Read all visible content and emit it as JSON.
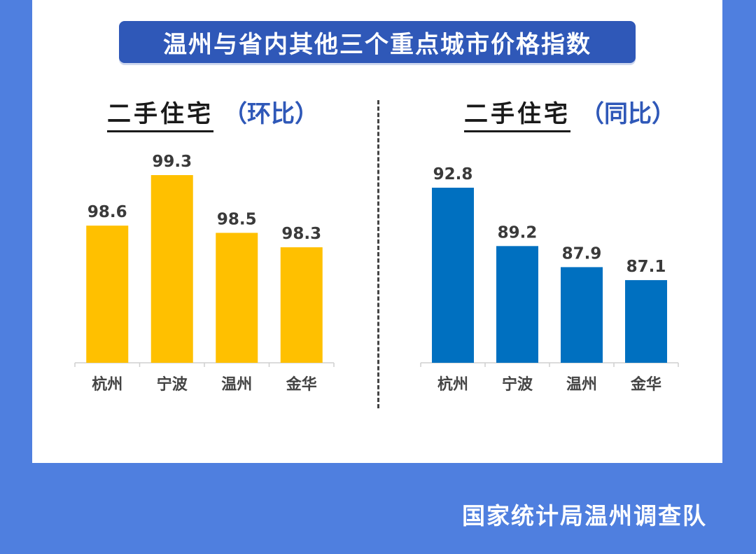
{
  "title": "温州与省内其他三个重点城市价格指数",
  "footer": "国家统计局温州调查队",
  "colors": {
    "background": "#4f7fdf",
    "title_bg": "#2f58b8",
    "bar_left": "#ffc000",
    "bar_right": "#0070c0"
  },
  "chart_data": [
    {
      "type": "bar",
      "title": "二手住宅",
      "subtitle": "（环比）",
      "categories": [
        "杭州",
        "宁波",
        "温州",
        "金华"
      ],
      "values": [
        98.6,
        99.3,
        98.5,
        98.3
      ],
      "data_labels": [
        "98.6",
        "99.3",
        "98.5",
        "98.3"
      ],
      "color": "#ffc000",
      "ylim": [
        96.7,
        99.4
      ]
    },
    {
      "type": "bar",
      "title": "二手住宅",
      "subtitle": "（同比）",
      "categories": [
        "杭州",
        "宁波",
        "温州",
        "金华"
      ],
      "values": [
        92.8,
        89.2,
        87.9,
        87.1
      ],
      "data_labels": [
        "92.8",
        "89.2",
        "87.9",
        "87.1"
      ],
      "color": "#0070c0",
      "ylim": [
        82.0,
        93.5
      ]
    }
  ]
}
